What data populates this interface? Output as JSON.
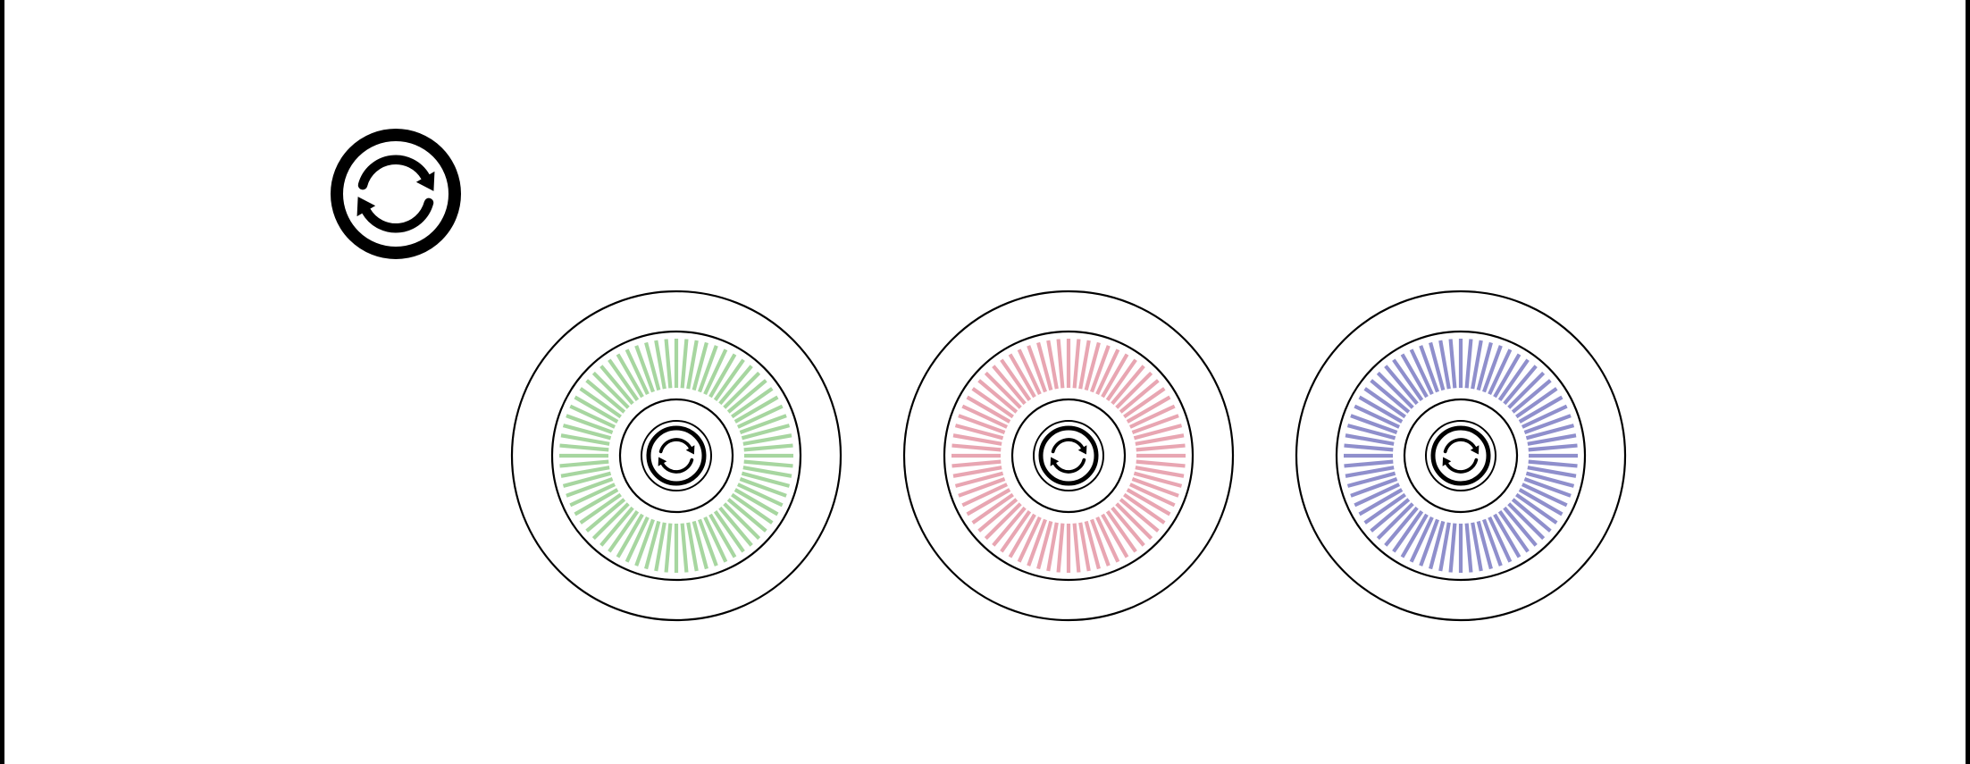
{
  "background_color": "#ffffff",
  "stroke_color": "#000000",
  "main_icon": {
    "name": "sync-icon"
  },
  "dials": [
    {
      "name": "green-dial",
      "color": "#a7d6a0",
      "icon": "sync-icon"
    },
    {
      "name": "red-dial",
      "color": "#e8a6b2",
      "icon": "sync-icon"
    },
    {
      "name": "blue-dial",
      "color": "#8f8fcc",
      "icon": "sync-icon"
    }
  ]
}
